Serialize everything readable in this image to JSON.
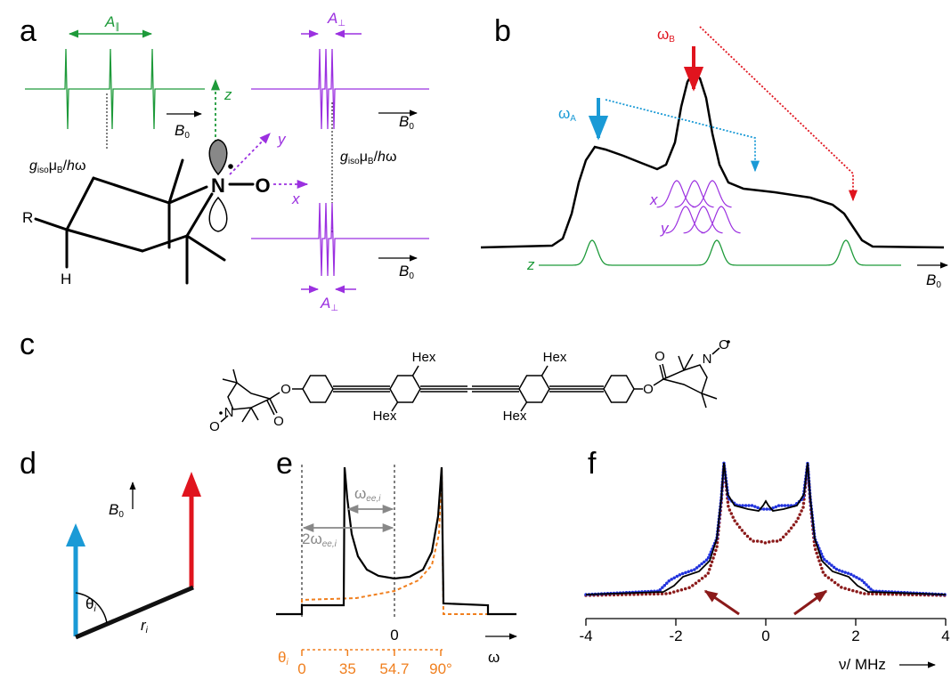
{
  "panels": {
    "a": {
      "label": "a",
      "A_parallel": {
        "symbol": "A",
        "subscript": "∥"
      },
      "A_perp": [
        {
          "symbol": "A",
          "subscript": "⊥"
        },
        {
          "symbol": "A",
          "subscript": "⊥"
        }
      ],
      "B0": [
        {
          "symbol": "B",
          "subscript": "0"
        },
        {
          "symbol": "B",
          "subscript": "0"
        },
        {
          "symbol": "B",
          "subscript": "0"
        }
      ],
      "axes": {
        "z": "z",
        "y": "y",
        "x": "x"
      },
      "g_labels": [
        {
          "g": "g",
          "iso": "iso",
          "mu": "μ",
          "B": "B",
          "slash": "/",
          "h": "h",
          "omega": "ω"
        },
        {
          "g": "g",
          "iso": "iso",
          "mu": "μ",
          "B": "B",
          "slash": "/",
          "h": "h",
          "omega": "ω"
        }
      ],
      "atoms": {
        "R": "R",
        "H": "H",
        "N": "N",
        "O": "O"
      }
    },
    "b": {
      "label": "b",
      "omega_B": {
        "symbol": "ω",
        "subscript": "B"
      },
      "omega_A": {
        "symbol": "ω",
        "subscript": "A"
      },
      "components": {
        "x": "x",
        "y": "y",
        "z": "z"
      },
      "B0": {
        "symbol": "B",
        "subscript": "0"
      }
    },
    "c": {
      "label": "c",
      "substituents": [
        "Hex",
        "Hex",
        "Hex",
        "Hex"
      ],
      "atoms": [
        "N",
        "O",
        "O",
        "O",
        "O",
        "O",
        "N",
        "O"
      ]
    },
    "d": {
      "label": "d",
      "B0": {
        "symbol": "B",
        "subscript": "0"
      },
      "theta": {
        "symbol": "θ",
        "subscript": "i"
      },
      "r": {
        "symbol": "r",
        "subscript": "i"
      }
    },
    "e": {
      "label": "e",
      "omega_ee": {
        "symbol": "ω",
        "subscript": "ee,i"
      },
      "two_omega_ee": {
        "symbol": "2ω",
        "subscript": "ee,i"
      },
      "omega_zero": 0,
      "omega_label": "ω",
      "theta": {
        "symbol": "θ",
        "subscript": "i"
      },
      "theta_ticks": [
        0,
        35,
        54.7,
        {
          "value": 90,
          "label": "90°"
        }
      ]
    },
    "f": {
      "label": "f",
      "xlim": [
        -4,
        4
      ],
      "xticks": [
        -4,
        -2,
        0,
        2,
        4
      ],
      "xlabel": "ν/ MHz"
    }
  }
}
